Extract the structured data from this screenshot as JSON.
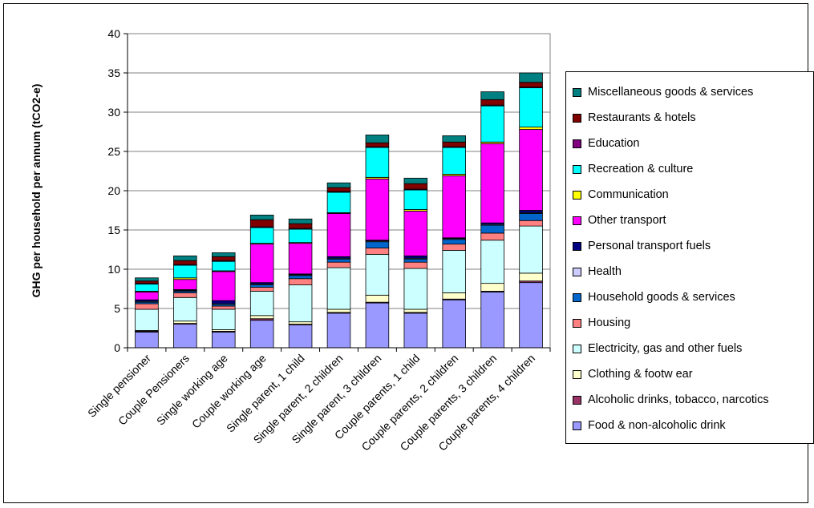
{
  "chart_data": {
    "type": "bar",
    "stacked": true,
    "title": "",
    "xlabel": "",
    "ylabel": "GHG per household per annum (tCO2-e)",
    "ylim": [
      0,
      40
    ],
    "yticks": [
      0,
      5,
      10,
      15,
      20,
      25,
      30,
      35,
      40
    ],
    "ytick_labels": [
      "0",
      "5",
      "10",
      "15",
      "20",
      "25",
      "30",
      "35",
      "40"
    ],
    "grid": "horizontal",
    "legend_position": "right",
    "categories": [
      "Single pensioner",
      "Couple Pensioners",
      "Single working age",
      "Couple working age",
      "Single parent, 1 child",
      "Single parent, 2 children",
      "Single parent, 3 children",
      "Couple parents, 1 child",
      "Couple parents, 2 children",
      "Couple parents, 3 children",
      "Couple parents, 4 children"
    ],
    "series": [
      {
        "name": "Food & non-alcoholic drink",
        "color": "#9999ff",
        "values": [
          2.0,
          3.0,
          2.0,
          3.5,
          2.9,
          4.4,
          5.7,
          4.4,
          6.1,
          7.1,
          8.3
        ]
      },
      {
        "name": "Alcoholic drinks, tobacco, narcotics",
        "color": "#993366",
        "values": [
          0.1,
          0.1,
          0.1,
          0.2,
          0.1,
          0.1,
          0.1,
          0.1,
          0.1,
          0.1,
          0.2
        ]
      },
      {
        "name": "Clothing & footw ear",
        "color": "#ffffcc",
        "values": [
          0.1,
          0.3,
          0.2,
          0.4,
          0.3,
          0.4,
          0.9,
          0.4,
          0.8,
          1.0,
          1.0
        ]
      },
      {
        "name": "Electricity, gas and other fuels",
        "color": "#ccffff",
        "values": [
          2.7,
          3.0,
          2.6,
          3.1,
          4.7,
          5.3,
          5.2,
          5.2,
          5.4,
          5.5,
          6.0
        ]
      },
      {
        "name": "Housing",
        "color": "#ff8080",
        "values": [
          0.7,
          0.6,
          0.4,
          0.5,
          0.8,
          0.7,
          0.8,
          0.8,
          0.8,
          0.9,
          0.7
        ]
      },
      {
        "name": "Household goods & services",
        "color": "#0066cc",
        "values": [
          0.2,
          0.2,
          0.2,
          0.3,
          0.4,
          0.4,
          0.8,
          0.4,
          0.6,
          1.0,
          0.9
        ]
      },
      {
        "name": "Health",
        "color": "#ccccff",
        "values": [
          0.1,
          0.1,
          0.1,
          0.1,
          0.1,
          0.1,
          0.1,
          0.1,
          0.1,
          0.1,
          0.1
        ]
      },
      {
        "name": "Personal transport fuels",
        "color": "#000080",
        "values": [
          0.2,
          0.1,
          0.4,
          0.2,
          0.1,
          0.2,
          0.1,
          0.3,
          0.1,
          0.2,
          0.3
        ]
      },
      {
        "name": "Other transport",
        "color": "#ff00ff",
        "values": [
          1.0,
          1.3,
          3.7,
          4.9,
          3.9,
          5.5,
          7.8,
          5.7,
          7.9,
          10.1,
          10.3
        ]
      },
      {
        "name": "Communication",
        "color": "#ffff00",
        "values": [
          0.1,
          0.2,
          0.1,
          0.1,
          0.1,
          0.1,
          0.2,
          0.2,
          0.2,
          0.2,
          0.3
        ]
      },
      {
        "name": "Recreation & culture",
        "color": "#00ffff",
        "values": [
          0.9,
          1.6,
          1.2,
          2.0,
          1.7,
          2.6,
          3.8,
          2.5,
          3.4,
          4.6,
          5.0
        ]
      },
      {
        "name": "Education",
        "color": "#800080",
        "values": [
          0.1,
          0.1,
          0.1,
          0.1,
          0.1,
          0.1,
          0.1,
          0.1,
          0.1,
          0.1,
          0.1
        ]
      },
      {
        "name": "Restaurants & hotels",
        "color": "#800000",
        "values": [
          0.3,
          0.5,
          0.5,
          0.9,
          0.6,
          0.5,
          0.5,
          0.7,
          0.6,
          0.7,
          0.6
        ]
      },
      {
        "name": "Miscellaneous goods & services",
        "color": "#008080",
        "values": [
          0.4,
          0.6,
          0.5,
          0.6,
          0.6,
          0.6,
          1.0,
          0.7,
          0.8,
          1.0,
          1.2
        ]
      }
    ]
  }
}
